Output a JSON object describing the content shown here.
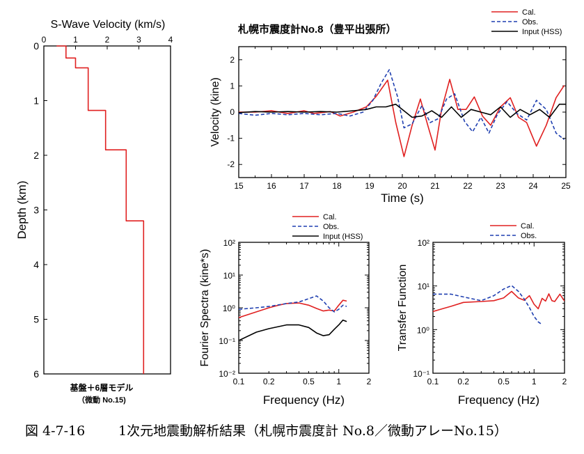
{
  "caption": {
    "number": "図 4-7-16",
    "text": "1次元地震動解析結果（札幌市震度計 No.8／微動アレーNo.15）"
  },
  "chart_data": [
    {
      "id": "profile",
      "type": "line",
      "title": "S-Wave Velocity (km/s)",
      "xlabel": "",
      "ylabel": "Depth (km)",
      "xlim": [
        0,
        4
      ],
      "ylim": [
        0,
        6
      ],
      "y_inverted": true,
      "x_ticks": [
        "0",
        "1",
        "2",
        "3",
        "4"
      ],
      "y_ticks": [
        "0",
        "1",
        "2",
        "3",
        "4",
        "5",
        "6"
      ],
      "note": [
        "基盤＋6層モデル",
        "（微動 No.15)"
      ],
      "series": [
        {
          "name": "",
          "color": "#e02020",
          "x": [
            0.4,
            0.7,
            0.7,
            1.0,
            1.0,
            1.4,
            1.4,
            1.95,
            1.95,
            2.6,
            2.6,
            3.15,
            3.15
          ],
          "y": [
            0.0,
            0.0,
            0.22,
            0.22,
            0.4,
            0.4,
            1.18,
            1.18,
            1.9,
            1.9,
            3.2,
            3.2,
            6.0
          ]
        }
      ]
    },
    {
      "id": "velocity",
      "type": "line",
      "title": "札幌市震度計No.8（豊平出張所）",
      "xlabel": "Time (s)",
      "ylabel": "Velocity (kine)",
      "xlim": [
        15,
        25
      ],
      "ylim": [
        -2.5,
        2.5
      ],
      "x_ticks": [
        "15",
        "16",
        "17",
        "18",
        "19",
        "20",
        "21",
        "22",
        "23",
        "24",
        "25"
      ],
      "y_ticks": [
        "-2",
        "-1",
        "0",
        "1",
        "2"
      ],
      "legend_position": "top-right",
      "series": [
        {
          "name": "Cal.",
          "color": "#e02020",
          "dash": "solid",
          "x": [
            15.0,
            15.5,
            16.0,
            16.5,
            17.0,
            17.3,
            17.8,
            18.1,
            18.5,
            18.9,
            19.2,
            19.55,
            19.8,
            20.05,
            20.3,
            20.55,
            20.8,
            21.0,
            21.2,
            21.45,
            21.7,
            21.95,
            22.2,
            22.45,
            22.7,
            23.0,
            23.3,
            23.55,
            23.8,
            24.1,
            24.4,
            24.7,
            24.95
          ],
          "y": [
            0.0,
            0.0,
            0.05,
            -0.05,
            0.05,
            -0.05,
            0.02,
            -0.15,
            0.0,
            0.2,
            0.6,
            1.22,
            -0.4,
            -1.7,
            -0.5,
            0.5,
            -0.6,
            -1.45,
            0.1,
            1.25,
            0.1,
            0.1,
            0.58,
            -0.15,
            -0.5,
            0.2,
            0.55,
            -0.2,
            -0.4,
            -1.3,
            -0.5,
            0.55,
            1.02
          ]
        },
        {
          "name": "Obs.",
          "color": "#1f3fb0",
          "dash": "dashed",
          "x": [
            15.0,
            15.5,
            16.0,
            16.5,
            17.0,
            17.5,
            18.0,
            18.4,
            18.8,
            19.1,
            19.35,
            19.6,
            19.85,
            20.05,
            20.3,
            20.6,
            20.85,
            21.1,
            21.35,
            21.6,
            21.9,
            22.15,
            22.4,
            22.65,
            22.9,
            23.2,
            23.5,
            23.8,
            24.1,
            24.4,
            24.7,
            24.95
          ],
          "y": [
            -0.05,
            -0.12,
            -0.05,
            -0.1,
            -0.05,
            -0.1,
            -0.05,
            -0.15,
            0.0,
            0.45,
            1.1,
            1.62,
            0.6,
            -0.6,
            -0.45,
            0.25,
            -0.4,
            -0.25,
            0.5,
            0.7,
            -0.35,
            -0.75,
            -0.2,
            -0.8,
            -0.1,
            0.4,
            -0.05,
            -0.3,
            0.45,
            0.1,
            -0.8,
            -1.05
          ]
        },
        {
          "name": "Input (HSS)",
          "color": "#000000",
          "dash": "solid",
          "x": [
            15.0,
            15.5,
            16.0,
            16.5,
            17.0,
            17.5,
            18.0,
            18.5,
            18.9,
            19.2,
            19.5,
            19.8,
            20.0,
            20.3,
            20.6,
            20.9,
            21.2,
            21.5,
            21.8,
            22.1,
            22.4,
            22.7,
            23.0,
            23.3,
            23.6,
            23.9,
            24.2,
            24.5,
            24.8,
            25.0
          ],
          "y": [
            -0.02,
            0.02,
            0.0,
            0.02,
            0.0,
            0.02,
            0.0,
            0.05,
            0.1,
            0.2,
            0.2,
            0.3,
            0.1,
            -0.2,
            -0.15,
            0.05,
            -0.2,
            0.2,
            -0.2,
            0.1,
            0.0,
            -0.1,
            0.2,
            -0.2,
            0.1,
            -0.1,
            0.1,
            -0.2,
            0.3,
            0.3
          ]
        }
      ]
    },
    {
      "id": "fourier",
      "type": "line",
      "title": "",
      "xlabel": "Frequency (Hz)",
      "ylabel": "Fourier Spectra (kine*s)",
      "x_scale": "log",
      "y_scale": "log",
      "xlim": [
        0.1,
        2
      ],
      "ylim": [
        0.01,
        100
      ],
      "x_ticks": [
        "0.1",
        "0.2",
        "0.5",
        "1",
        "2"
      ],
      "y_ticks": [
        "10²",
        "10¹",
        "10⁰",
        "10⁻¹",
        "10⁻²"
      ],
      "legend_position": "top-right",
      "series": [
        {
          "name": "Cal.",
          "color": "#e02020",
          "dash": "solid",
          "x": [
            0.1,
            0.15,
            0.2,
            0.25,
            0.3,
            0.4,
            0.5,
            0.6,
            0.7,
            0.8,
            0.9,
            1.0,
            1.1,
            1.2
          ],
          "y": [
            0.5,
            0.75,
            1.0,
            1.2,
            1.35,
            1.4,
            1.2,
            0.95,
            0.8,
            0.85,
            0.8,
            1.2,
            1.7,
            1.6
          ]
        },
        {
          "name": "Obs.",
          "color": "#1f3fb0",
          "dash": "dashed",
          "x": [
            0.1,
            0.15,
            0.2,
            0.3,
            0.4,
            0.5,
            0.6,
            0.7,
            0.8,
            0.9,
            1.0,
            1.1,
            1.2
          ],
          "y": [
            0.9,
            1.0,
            1.1,
            1.35,
            1.5,
            1.9,
            2.3,
            1.6,
            1.0,
            0.75,
            0.9,
            1.2,
            1.1
          ]
        },
        {
          "name": "Input (HSS)",
          "color": "#000000",
          "dash": "solid",
          "x": [
            0.1,
            0.15,
            0.2,
            0.3,
            0.4,
            0.5,
            0.6,
            0.7,
            0.8,
            0.9,
            1.0,
            1.1,
            1.2
          ],
          "y": [
            0.1,
            0.18,
            0.23,
            0.3,
            0.3,
            0.25,
            0.17,
            0.14,
            0.15,
            0.22,
            0.3,
            0.42,
            0.38
          ]
        }
      ]
    },
    {
      "id": "transfer",
      "type": "line",
      "title": "",
      "xlabel": "Frequency (Hz)",
      "ylabel": "Transfer Function",
      "x_scale": "log",
      "y_scale": "log",
      "xlim": [
        0.1,
        2
      ],
      "ylim": [
        0.1,
        100
      ],
      "x_ticks": [
        "0.1",
        "0.2",
        "0.5",
        "1",
        "2"
      ],
      "y_ticks": [
        "10²",
        "10¹",
        "10⁰",
        "10⁻¹"
      ],
      "legend_position": "top-right",
      "series": [
        {
          "name": "Cal.",
          "color": "#e02020",
          "dash": "solid",
          "x": [
            0.1,
            0.15,
            0.2,
            0.3,
            0.4,
            0.5,
            0.6,
            0.7,
            0.8,
            0.9,
            1.0,
            1.1,
            1.2,
            1.3,
            1.4,
            1.5,
            1.6,
            1.8,
            2.0
          ],
          "y": [
            2.6,
            3.4,
            4.2,
            4.4,
            4.6,
            5.3,
            7.5,
            5.3,
            4.7,
            6.0,
            3.8,
            3.0,
            5.2,
            4.5,
            6.6,
            4.6,
            4.4,
            6.5,
            4.5
          ]
        },
        {
          "name": "Obs.",
          "color": "#1f3fb0",
          "dash": "dashed",
          "x": [
            0.1,
            0.15,
            0.2,
            0.3,
            0.4,
            0.5,
            0.6,
            0.7,
            0.8,
            0.9,
            1.0,
            1.1,
            1.2
          ],
          "y": [
            6.5,
            6.5,
            5.6,
            4.6,
            6.0,
            8.5,
            10.2,
            7.5,
            5.0,
            3.2,
            2.0,
            1.5,
            1.3
          ]
        }
      ]
    }
  ]
}
